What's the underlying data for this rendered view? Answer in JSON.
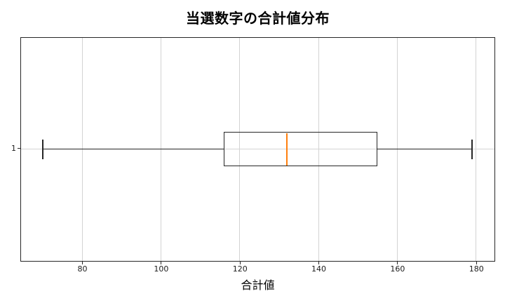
{
  "chart_data": {
    "type": "boxplot",
    "orientation": "horizontal",
    "title": "当選数字の合計値分布",
    "xlabel": "合計値",
    "ylabel": "",
    "x_ticks": [
      80,
      100,
      120,
      140,
      160,
      180
    ],
    "y_tick_labels": [
      "1"
    ],
    "xlim": [
      64.5,
      184.5
    ],
    "grid": true,
    "legend": false,
    "series": [
      {
        "name": "1",
        "whisker_low": 70,
        "q1": 116,
        "median": 132,
        "q3": 155,
        "whisker_high": 179,
        "outliers": []
      }
    ],
    "colors": {
      "box_border": "#262626",
      "whisker": "#262626",
      "median": "#ff7f0e",
      "grid": "#d3d3d3",
      "tick_text": "#1a1a1a",
      "background": "#ffffff"
    }
  }
}
